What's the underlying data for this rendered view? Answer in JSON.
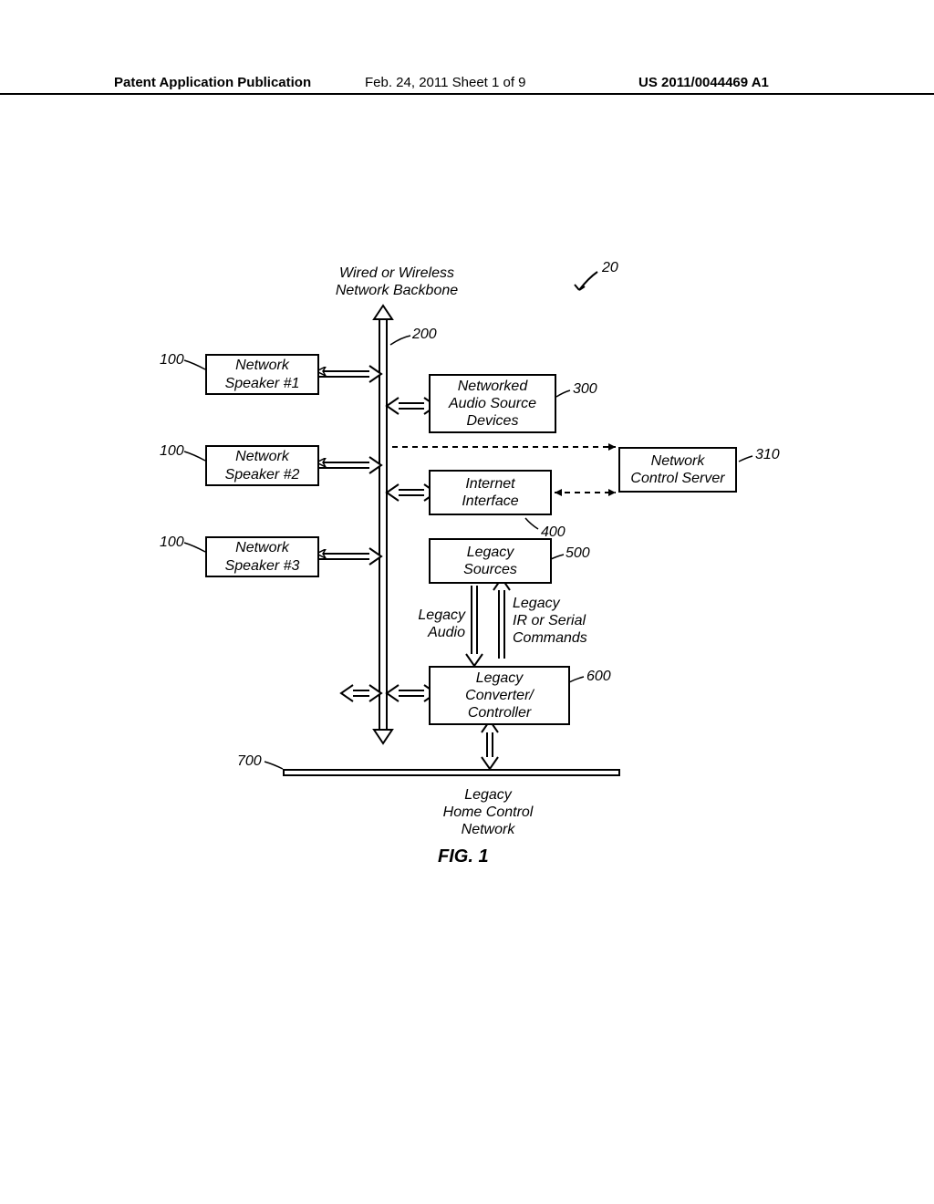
{
  "header": {
    "left": "Patent Application Publication",
    "center": "Feb. 24, 2011  Sheet 1 of 9",
    "right": "US 2011/0044469 A1"
  },
  "diagram": {
    "title_line1": "Wired or Wireless",
    "title_line2": "Network Backbone",
    "ref_20": "20",
    "ref_200": "200",
    "speaker1": {
      "label": "Network\nSpeaker #1",
      "ref": "100"
    },
    "speaker2": {
      "label": "Network\nSpeaker #2",
      "ref": "100"
    },
    "speaker3": {
      "label": "Network\nSpeaker #3",
      "ref": "100"
    },
    "audio_source": {
      "label": "Networked\nAudio Source\nDevices",
      "ref": "300"
    },
    "control_server": {
      "label": "Network\nControl Server",
      "ref": "310"
    },
    "internet": {
      "label": "Internet\nInterface",
      "ref": "400"
    },
    "legacy_sources": {
      "label": "Legacy\nSources",
      "ref": "500"
    },
    "legacy_converter": {
      "label": "Legacy\nConverter/\nController",
      "ref": "600"
    },
    "legacy_audio_label": "Legacy\nAudio",
    "legacy_cmds_label": "Legacy\nIR or Serial\nCommands",
    "legacy_network_label": "Legacy\nHome Control\nNetwork",
    "ref_700": "700"
  },
  "figure_label": "FIG. 1",
  "colors": {
    "line": "#000000",
    "bg": "#ffffff"
  }
}
